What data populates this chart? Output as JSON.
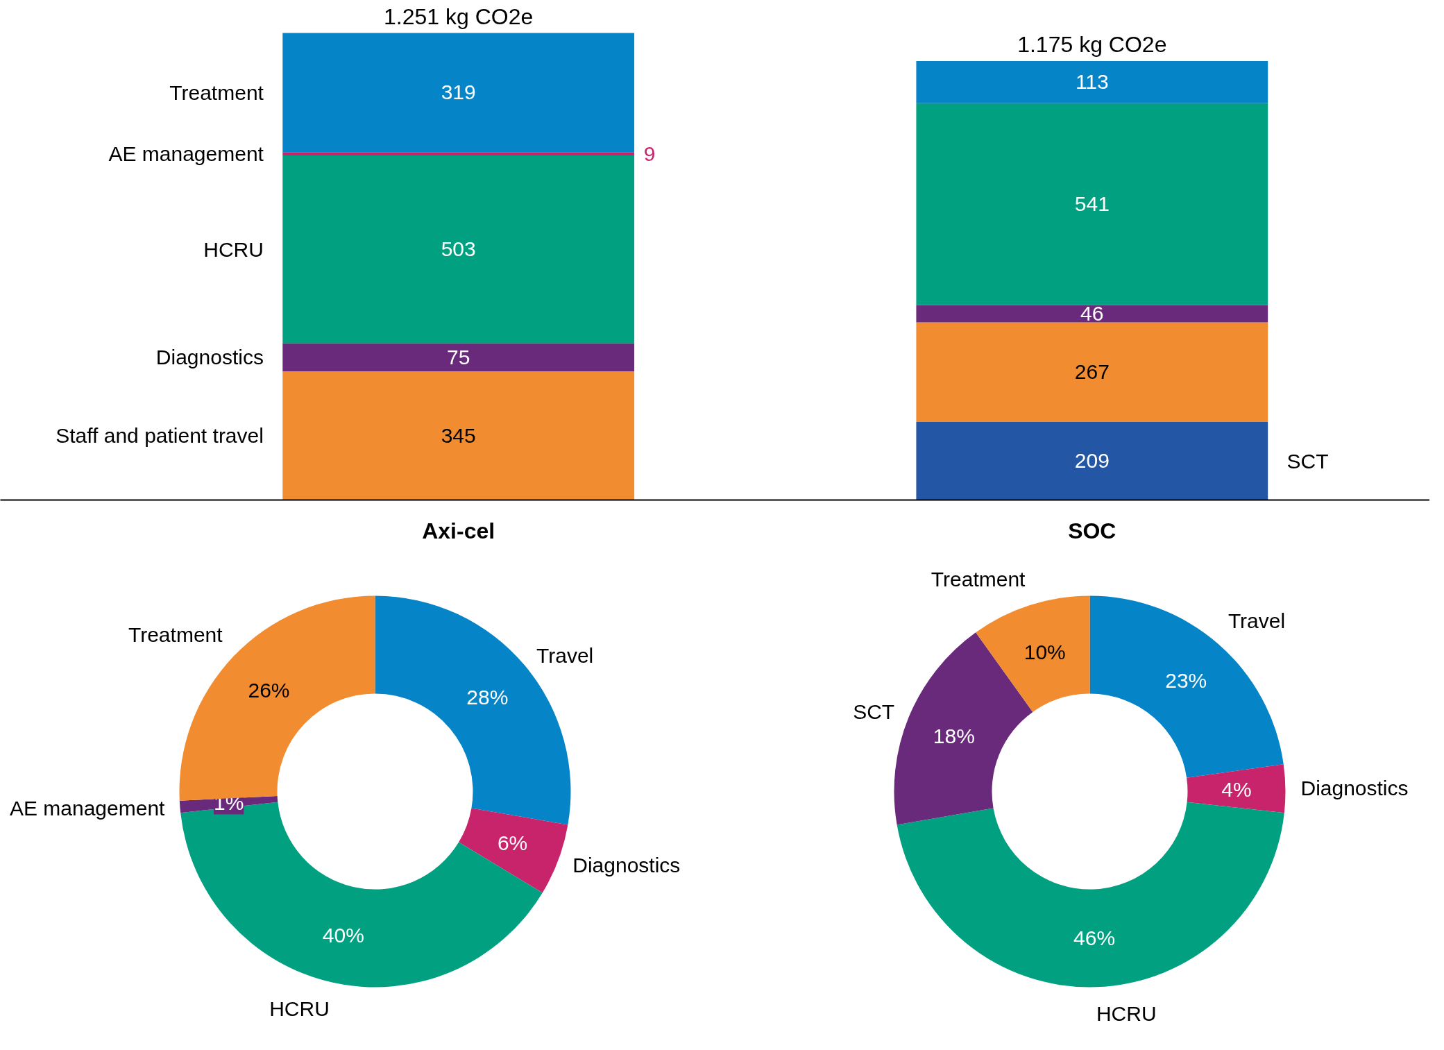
{
  "chart_data": [
    {
      "type": "bar",
      "stacked": true,
      "categories": [
        "Axi-cel",
        "SOC"
      ],
      "data_labels": true,
      "totals": [
        "1.251 kg CO2e",
        "1.175 kg CO2e"
      ],
      "series": [
        {
          "name": "SCT",
          "color": "#2456a6",
          "values": [
            null,
            209
          ]
        },
        {
          "name": "Staff and patient travel",
          "color": "#f28c30",
          "values": [
            345,
            267
          ]
        },
        {
          "name": "Diagnostics",
          "color": "#6a2a7c",
          "values": [
            75,
            46
          ]
        },
        {
          "name": "HCRU",
          "color": "#00a080",
          "values": [
            503,
            541
          ]
        },
        {
          "name": "AE management",
          "color": "#c8246c",
          "values": [
            9,
            null
          ]
        },
        {
          "name": "Treatment",
          "color": "#0585c8",
          "values": [
            319,
            113
          ]
        }
      ]
    },
    {
      "type": "donut",
      "categories": [
        "Travel",
        "Diagnostics",
        "HCRU",
        "AE management",
        "Treatment"
      ],
      "values": [
        28,
        6,
        40,
        1,
        26
      ],
      "colors": [
        "#0585c8",
        "#c8246c",
        "#00a080",
        "#6a2a7c",
        "#f28c30"
      ],
      "value_labels": [
        "28%",
        "6%",
        "40%",
        "1%",
        "26%"
      ]
    },
    {
      "type": "donut",
      "categories": [
        "Travel",
        "Diagnostics",
        "HCRU",
        "SCT",
        "Treatment"
      ],
      "values": [
        23,
        4,
        46,
        18,
        10
      ],
      "colors": [
        "#0585c8",
        "#c8246c",
        "#00a080",
        "#6a2a7c",
        "#f28c30"
      ],
      "value_labels": [
        "23%",
        "4%",
        "46%",
        "18%",
        "10%"
      ]
    }
  ]
}
